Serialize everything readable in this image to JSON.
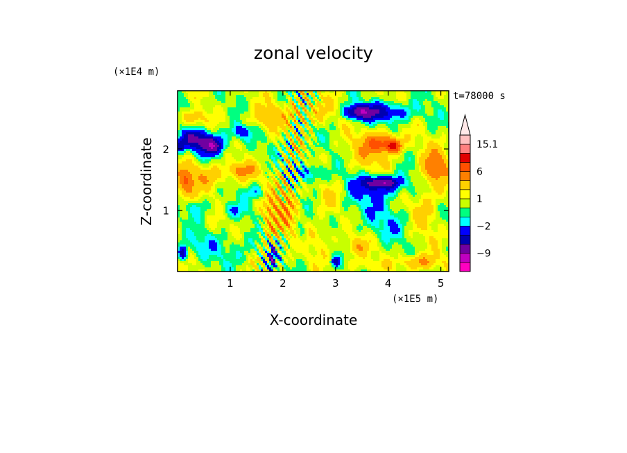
{
  "chart_data": {
    "type": "heatmap",
    "title": "zonal velocity",
    "time_label": "t=78000 s",
    "xlabel": "X-coordinate",
    "ylabel": "Z-coordinate",
    "x_unit": "(×1E5 m)",
    "y_unit": "(×1E4 m)",
    "xlim": [
      0,
      5.15
    ],
    "ylim": [
      0,
      2.95
    ],
    "x_ticks": [
      {
        "value": 1,
        "label": "1"
      },
      {
        "value": 2,
        "label": "2"
      },
      {
        "value": 3,
        "label": "3"
      },
      {
        "value": 4,
        "label": "4"
      },
      {
        "value": 5,
        "label": "5"
      }
    ],
    "y_ticks": [
      {
        "value": 1,
        "label": "1"
      },
      {
        "value": 2,
        "label": "2"
      }
    ],
    "colorbar": {
      "levels": [
        -15,
        -12,
        -9,
        -6,
        -4,
        -2,
        -1,
        0,
        1,
        2,
        4,
        6,
        9,
        12,
        15.1
      ],
      "colors": [
        "#ff00c0",
        "#c000c0",
        "#7000a0",
        "#0000b0",
        "#0000ff",
        "#00ffff",
        "#00ff80",
        "#c8ff00",
        "#ffff00",
        "#ffd000",
        "#ff8000",
        "#ff5000",
        "#e00000",
        "#ff8080",
        "#ffc0c0"
      ],
      "extend_color": "#ffe8e8",
      "labeled_values": [
        {
          "value": 15.1,
          "label": "15.1"
        },
        {
          "value": 6,
          "label": "6"
        },
        {
          "value": 1,
          "label": "1"
        },
        {
          "value": -2,
          "label": "−2"
        },
        {
          "value": -9,
          "label": "−9"
        }
      ]
    },
    "features": [
      {
        "x": 0.65,
        "z": 2.05,
        "rx": 0.22,
        "rz": 0.13,
        "v": -6
      },
      {
        "x": 0.55,
        "z": 2.1,
        "rx": 0.38,
        "rz": 0.2,
        "v": -3
      },
      {
        "x": 1.2,
        "z": 2.28,
        "rx": 0.2,
        "rz": 0.12,
        "v": -4
      },
      {
        "x": 0.3,
        "z": 2.18,
        "rx": 0.22,
        "rz": 0.14,
        "v": -5
      },
      {
        "x": 0.05,
        "z": 2.05,
        "rx": 0.1,
        "rz": 0.1,
        "v": -5
      },
      {
        "x": 3.9,
        "z": 2.6,
        "rx": 0.55,
        "rz": 0.15,
        "v": -5
      },
      {
        "x": 3.45,
        "z": 2.6,
        "rx": 0.25,
        "rz": 0.1,
        "v": -7
      },
      {
        "x": 3.9,
        "z": 1.45,
        "rx": 0.3,
        "rz": 0.09,
        "v": -7
      },
      {
        "x": 3.8,
        "z": 1.4,
        "rx": 0.6,
        "rz": 0.2,
        "v": -3
      },
      {
        "x": 3.6,
        "z": 1.1,
        "rx": 0.55,
        "rz": 0.35,
        "v": -1.5
      },
      {
        "x": 4.1,
        "z": 0.75,
        "rx": 0.45,
        "rz": 0.25,
        "v": -1.5
      },
      {
        "x": 2.55,
        "z": 1.6,
        "rx": 0.3,
        "rz": 0.15,
        "v": -3
      },
      {
        "x": 1.5,
        "z": 1.3,
        "rx": 0.2,
        "rz": 0.12,
        "v": -2.5
      },
      {
        "x": 1.05,
        "z": 1.0,
        "rx": 0.25,
        "rz": 0.12,
        "v": -2
      },
      {
        "x": 0.35,
        "z": 1.05,
        "rx": 0.22,
        "rz": 0.15,
        "v": -2
      },
      {
        "x": 0.4,
        "z": 0.45,
        "rx": 0.35,
        "rz": 0.2,
        "v": -1.5
      },
      {
        "x": 1.1,
        "z": 0.35,
        "rx": 0.45,
        "rz": 0.25,
        "v": -1.5
      },
      {
        "x": 0.1,
        "z": 0.3,
        "rx": 0.08,
        "rz": 0.12,
        "v": -6
      },
      {
        "x": 1.8,
        "z": 0.2,
        "rx": 0.06,
        "rz": 0.2,
        "v": -6
      },
      {
        "x": 2.35,
        "z": 0.6,
        "rx": 0.1,
        "rz": 0.2,
        "v": -2
      },
      {
        "x": 3.0,
        "z": 0.15,
        "rx": 0.08,
        "rz": 0.08,
        "v": -5
      },
      {
        "x": 0.25,
        "z": 2.7,
        "rx": 0.2,
        "rz": 0.1,
        "v": -1.5
      },
      {
        "x": 0.5,
        "z": 1.55,
        "rx": 0.5,
        "rz": 0.2,
        "v": 3
      },
      {
        "x": 0.15,
        "z": 1.4,
        "rx": 0.15,
        "rz": 0.25,
        "v": 4
      },
      {
        "x": 1.25,
        "z": 1.65,
        "rx": 0.3,
        "rz": 0.12,
        "v": 3.5
      },
      {
        "x": 2.05,
        "z": 1.05,
        "rx": 0.25,
        "rz": 0.5,
        "v": 3
      },
      {
        "x": 1.75,
        "z": 0.85,
        "rx": 0.15,
        "rz": 0.4,
        "v": 2.5
      },
      {
        "x": 3.9,
        "z": 2.1,
        "rx": 0.3,
        "rz": 0.15,
        "v": 5
      },
      {
        "x": 4.1,
        "z": 2.05,
        "rx": 0.15,
        "rz": 0.1,
        "v": 7
      },
      {
        "x": 4.9,
        "z": 1.7,
        "rx": 0.25,
        "rz": 0.3,
        "v": 5
      },
      {
        "x": 3.65,
        "z": 1.95,
        "rx": 0.4,
        "rz": 0.3,
        "v": 2.5
      },
      {
        "x": 2.5,
        "z": 2.6,
        "rx": 0.4,
        "rz": 0.2,
        "v": 2.5
      },
      {
        "x": 1.7,
        "z": 2.5,
        "rx": 0.35,
        "rz": 0.2,
        "v": 2.5
      },
      {
        "x": 0.3,
        "z": 2.5,
        "rx": 0.2,
        "rz": 0.15,
        "v": 3
      },
      {
        "x": 2.9,
        "z": 1.2,
        "rx": 0.25,
        "rz": 0.3,
        "v": 1.5
      },
      {
        "x": 3.4,
        "z": 0.4,
        "rx": 0.2,
        "rz": 0.15,
        "v": 3
      },
      {
        "x": 4.6,
        "z": 0.15,
        "rx": 0.35,
        "rz": 0.12,
        "v": 4
      },
      {
        "x": 3.55,
        "z": 0.1,
        "rx": 0.35,
        "rz": 0.1,
        "v": 1.5
      },
      {
        "x": 2.7,
        "z": 0.55,
        "rx": 0.25,
        "rz": 0.25,
        "v": 1.5
      },
      {
        "x": 4.7,
        "z": 1.0,
        "rx": 0.3,
        "rz": 0.4,
        "v": 2
      }
    ]
  }
}
